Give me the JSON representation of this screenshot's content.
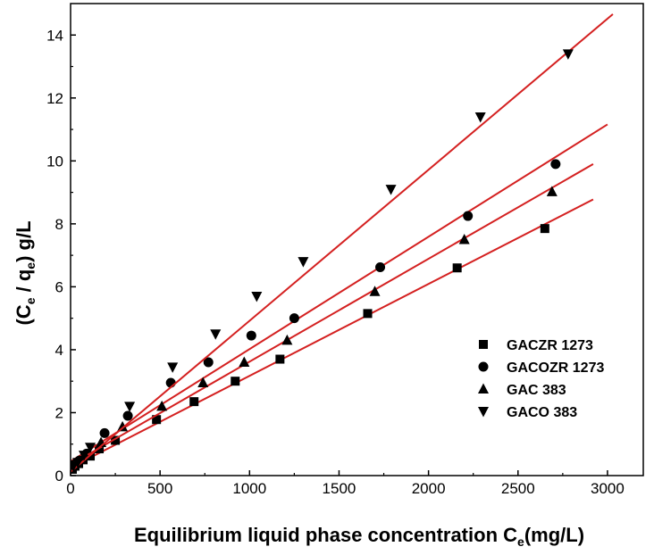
{
  "chart_data": {
    "type": "scatter",
    "title": "",
    "xlabel": "Equilibrium liquid phase concentration C",
    "xlabel_sub": "e",
    "xlabel_tail": "(mg/L)",
    "ylabel_prefix": "(C",
    "ylabel_sub1": "e",
    "ylabel_mid": " / q",
    "ylabel_sub2": "e",
    "ylabel_tail": ") g/L",
    "xlim": [
      0,
      3200
    ],
    "ylim": [
      0,
      15
    ],
    "x_ticks": [
      0,
      500,
      1000,
      1500,
      2000,
      2500,
      3000
    ],
    "y_ticks": [
      0,
      2,
      4,
      6,
      8,
      10,
      12,
      14
    ],
    "legend_position": "right",
    "fit_line_color": "#d42020",
    "marker_color": "#000000",
    "series": [
      {
        "name": "GACZR 1273",
        "marker": "square",
        "points": [
          [
            10,
            0.2
          ],
          [
            25,
            0.3
          ],
          [
            45,
            0.38
          ],
          [
            70,
            0.5
          ],
          [
            110,
            0.62
          ],
          [
            160,
            0.85
          ],
          [
            250,
            1.12
          ],
          [
            480,
            1.78
          ],
          [
            690,
            2.35
          ],
          [
            920,
            3.0
          ],
          [
            1170,
            3.7
          ],
          [
            1660,
            5.15
          ],
          [
            2160,
            6.6
          ],
          [
            2650,
            7.85
          ]
        ],
        "fit": {
          "intercept": 0.25,
          "slope": 0.00292,
          "x_end": 2920
        }
      },
      {
        "name": "GACOZR 1273",
        "marker": "circle",
        "points": [
          [
            20,
            0.35
          ],
          [
            50,
            0.48
          ],
          [
            90,
            0.7
          ],
          [
            190,
            1.35
          ],
          [
            320,
            1.9
          ],
          [
            560,
            2.95
          ],
          [
            770,
            3.6
          ],
          [
            1010,
            4.45
          ],
          [
            1250,
            5.0
          ],
          [
            1730,
            6.62
          ],
          [
            2220,
            8.25
          ],
          [
            2710,
            9.9
          ]
        ],
        "fit": {
          "intercept": 0.45,
          "slope": 0.00357,
          "x_end": 3000
        }
      },
      {
        "name": "GAC 383",
        "marker": "triangle-up",
        "points": [
          [
            15,
            0.3
          ],
          [
            40,
            0.45
          ],
          [
            80,
            0.65
          ],
          [
            170,
            1.05
          ],
          [
            290,
            1.55
          ],
          [
            510,
            2.2
          ],
          [
            740,
            2.95
          ],
          [
            970,
            3.6
          ],
          [
            1210,
            4.3
          ],
          [
            1700,
            5.85
          ],
          [
            2200,
            7.5
          ],
          [
            2690,
            9.02
          ]
        ],
        "fit": {
          "intercept": 0.35,
          "slope": 0.00327,
          "x_end": 2920
        }
      },
      {
        "name": "GACO 383",
        "marker": "triangle-down",
        "points": [
          [
            15,
            0.3
          ],
          [
            40,
            0.42
          ],
          [
            75,
            0.65
          ],
          [
            110,
            0.9
          ],
          [
            330,
            2.2
          ],
          [
            570,
            3.45
          ],
          [
            810,
            4.5
          ],
          [
            1040,
            5.7
          ],
          [
            1300,
            6.8
          ],
          [
            1790,
            9.1
          ],
          [
            2290,
            11.4
          ],
          [
            2780,
            13.4
          ]
        ],
        "fit": {
          "intercept": 0.12,
          "slope": 0.0048,
          "x_end": 3030
        }
      }
    ]
  }
}
